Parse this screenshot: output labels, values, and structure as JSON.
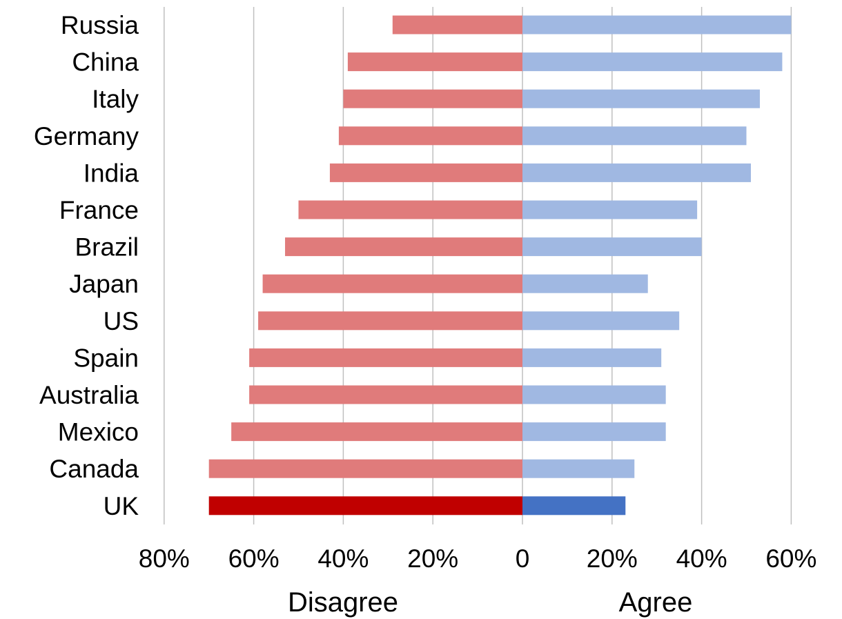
{
  "chart_data": {
    "type": "bar",
    "orientation": "horizontal-diverging",
    "title": "",
    "categories": [
      "Russia",
      "China",
      "Italy",
      "Germany",
      "India",
      "France",
      "Brazil",
      "Japan",
      "US",
      "Spain",
      "Australia",
      "Mexico",
      "Canada",
      "UK"
    ],
    "series": [
      {
        "name": "Disagree",
        "values": [
          29,
          39,
          40,
          41,
          43,
          50,
          53,
          58,
          59,
          61,
          61,
          65,
          70,
          70
        ],
        "color": "#e07b7b",
        "highlight_color": "#c00000"
      },
      {
        "name": "Agree",
        "values": [
          60,
          58,
          53,
          50,
          51,
          39,
          40,
          28,
          35,
          31,
          32,
          32,
          25,
          23
        ],
        "color": "#a0b8e2",
        "highlight_color": "#4472c4"
      }
    ],
    "highlight_category": "UK",
    "xlim": [
      -80,
      60
    ],
    "x_ticks": [
      -80,
      -60,
      -40,
      -20,
      0,
      20,
      40,
      60
    ],
    "x_tick_labels": [
      "80%",
      "60%",
      "40%",
      "20%",
      "0",
      "20%",
      "40%",
      "60%"
    ],
    "xlabel_left": "Disagree",
    "xlabel_right": "Agree",
    "grid": true
  }
}
